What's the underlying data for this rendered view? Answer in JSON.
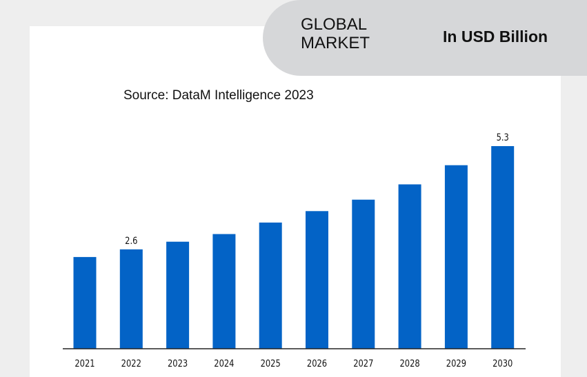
{
  "header": {
    "title": "GLOBAL MARKET",
    "unit": "In USD Billion"
  },
  "source": "Source: DataM Intelligence 2023",
  "colors": {
    "bar": "#0363c6",
    "axis": "#222222",
    "pill": "#d6d7d9",
    "background": "#eeeeee"
  },
  "chart_data": {
    "type": "bar",
    "categories": [
      "2021",
      "2022",
      "2023",
      "2024",
      "2025",
      "2026",
      "2027",
      "2028",
      "2029",
      "2030"
    ],
    "values": [
      2.4,
      2.6,
      2.8,
      3.0,
      3.3,
      3.6,
      3.9,
      4.3,
      4.8,
      5.3
    ],
    "data_labels": [
      {
        "category": "2022",
        "text": "2.6"
      },
      {
        "category": "2030",
        "text": "5.3"
      }
    ],
    "title": "",
    "xlabel": "",
    "ylabel": "",
    "ylim": [
      0,
      5.3
    ],
    "grid": false,
    "legend": "none"
  }
}
